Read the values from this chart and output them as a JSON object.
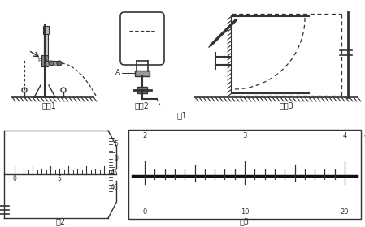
{
  "bg_color": "#ffffff",
  "fig1_label": "图1",
  "fig2_label": "图2",
  "fig3_label": "图3",
  "device1_label": "装置1",
  "device2_label": "装置2",
  "device3_label": "装置3",
  "lc": "#333333"
}
